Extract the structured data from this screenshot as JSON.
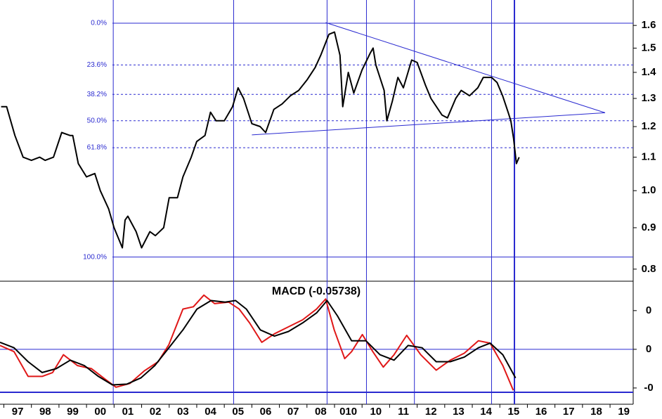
{
  "chart_data": [
    {
      "type": "line",
      "log_scale": true,
      "xlim": [
        1996.36,
        2019.34
      ],
      "ylim": [
        0.773,
        1.72
      ],
      "yticks": [
        0.8,
        0.9,
        {
          "value": 1,
          "label": "1.0"
        },
        1.1,
        1.2,
        1.3,
        1.4,
        1.5,
        1.6
      ],
      "x": [
        1996.4,
        1996.6,
        1996.9,
        1997.2,
        1997.5,
        1997.8,
        1998.0,
        1998.3,
        1998.6,
        1998.9,
        1999.0,
        1999.2,
        1999.5,
        1999.8,
        2000.0,
        2000.3,
        2000.5,
        2000.8,
        2000.9,
        2001.0,
        2001.3,
        2001.5,
        2001.8,
        2002.0,
        2002.3,
        2002.5,
        2002.8,
        2003.0,
        2003.3,
        2003.5,
        2003.8,
        2004.0,
        2004.2,
        2004.5,
        2004.8,
        2005.0,
        2005.2,
        2005.5,
        2005.8,
        2006.0,
        2006.3,
        2006.6,
        2006.9,
        2007.2,
        2007.5,
        2007.8,
        2008.0,
        2008.3,
        2008.5,
        2008.7,
        2008.8,
        2009.0,
        2009.2,
        2009.5,
        2009.8,
        2009.9,
        2010.0,
        2010.3,
        2010.4,
        2010.6,
        2010.8,
        2011.0,
        2011.3,
        2011.5,
        2011.8,
        2012.0,
        2012.4,
        2012.6,
        2012.9,
        2013.1,
        2013.4,
        2013.7,
        2013.9,
        2014.2,
        2014.4,
        2014.6,
        2014.8,
        2014.9,
        2015.0,
        2015.1,
        2015.2
      ],
      "series": [
        {
          "color": "#000000",
          "values": [
            1.27,
            1.27,
            1.17,
            1.1,
            1.09,
            1.1,
            1.09,
            1.1,
            1.18,
            1.17,
            1.17,
            1.08,
            1.04,
            1.05,
            1.0,
            0.95,
            0.9,
            0.85,
            0.92,
            0.93,
            0.89,
            0.85,
            0.89,
            0.88,
            0.9,
            0.98,
            0.98,
            1.04,
            1.1,
            1.15,
            1.17,
            1.25,
            1.22,
            1.22,
            1.27,
            1.34,
            1.3,
            1.21,
            1.2,
            1.18,
            1.26,
            1.28,
            1.31,
            1.33,
            1.37,
            1.42,
            1.47,
            1.56,
            1.57,
            1.47,
            1.27,
            1.4,
            1.32,
            1.41,
            1.48,
            1.5,
            1.43,
            1.33,
            1.22,
            1.29,
            1.38,
            1.34,
            1.45,
            1.44,
            1.35,
            1.3,
            1.24,
            1.23,
            1.3,
            1.33,
            1.31,
            1.34,
            1.38,
            1.38,
            1.36,
            1.31,
            1.25,
            1.22,
            1.16,
            1.08,
            1.1
          ]
        }
      ],
      "levels": [
        {
          "value": 1.61,
          "label": "0.0%",
          "style": "solid"
        },
        {
          "value": 1.43,
          "label": "23.6%",
          "style": "dashed"
        },
        {
          "value": 1.315,
          "label": "38.2%",
          "style": "dashed"
        },
        {
          "value": 1.22,
          "label": "50.0%",
          "style": "dashed"
        },
        {
          "value": 1.13,
          "label": "61.8%",
          "style": "dashed"
        },
        {
          "value": 0.828,
          "label": "100.0%",
          "style": "solid"
        }
      ],
      "trendlines": [
        {
          "x": [
            2008.18,
            2018.32
          ],
          "values": [
            1.613,
            1.248
          ]
        },
        {
          "x": [
            2005.5,
            2018.32
          ],
          "values": [
            1.172,
            1.248
          ]
        }
      ],
      "vlines": [
        2000.47,
        2004.84,
        2008.23,
        2009.66,
        2011.4,
        2014.2,
        2015.03
      ],
      "line_color": "#2a2ad0"
    },
    {
      "type": "line",
      "title": "MACD (-0.05738)",
      "xlim": [
        1996.36,
        2019.34
      ],
      "ylim": [
        -0.071,
        0.088
      ],
      "yticks": [
        {
          "value": 0.05,
          "label": "0"
        },
        {
          "value": 0,
          "label": "0"
        },
        {
          "value": -0.05,
          "label": "-0"
        }
      ],
      "xticks": [
        {
          "value": 1997,
          "label": "97"
        },
        {
          "value": 1998,
          "label": "98"
        },
        {
          "value": 1999,
          "label": "99"
        },
        {
          "value": 2000,
          "label": "00"
        },
        {
          "value": 2001,
          "label": "01"
        },
        {
          "value": 2002,
          "label": "02"
        },
        {
          "value": 2003,
          "label": "03"
        },
        {
          "value": 2004,
          "label": "04"
        },
        {
          "value": 2005,
          "label": "05"
        },
        {
          "value": 2006,
          "label": "06"
        },
        {
          "value": 2007,
          "label": "07"
        },
        {
          "value": 2008,
          "label": "08"
        },
        {
          "value": 2009,
          "label": "010"
        },
        {
          "value": 2010,
          "label": "10"
        },
        {
          "value": 2011,
          "label": "11"
        },
        {
          "value": 2012,
          "label": "12"
        },
        {
          "value": 2013,
          "label": "13"
        },
        {
          "value": 2014,
          "label": "14"
        },
        {
          "value": 2015,
          "label": "15"
        },
        {
          "value": 2016,
          "label": "16"
        },
        {
          "value": 2017,
          "label": "17"
        },
        {
          "value": 2018,
          "label": "18"
        },
        {
          "value": 2019,
          "label": "19"
        }
      ],
      "hlines": [
        0,
        -0.0555
      ],
      "series": [
        {
          "color": "#e01818",
          "x": [
            1996.36,
            1996.87,
            1997.38,
            1997.89,
            1998.27,
            1998.66,
            1999.17,
            1999.68,
            2000.19,
            2000.57,
            2001.08,
            2001.59,
            2002.1,
            2002.49,
            2003.0,
            2003.38,
            2003.76,
            2004.15,
            2004.66,
            2005.04,
            2005.42,
            2005.86,
            2006.32,
            2006.83,
            2007.34,
            2007.85,
            2008.18,
            2008.49,
            2008.87,
            2009.12,
            2009.51,
            2009.89,
            2010.27,
            2010.66,
            2011.12,
            2011.63,
            2012.19,
            2012.7,
            2013.21,
            2013.72,
            2014.15,
            2014.61,
            2014.99
          ],
          "values": [
            0.005,
            -0.003,
            -0.035,
            -0.035,
            -0.03,
            -0.007,
            -0.021,
            -0.025,
            -0.039,
            -0.049,
            -0.044,
            -0.028,
            -0.016,
            0.006,
            0.052,
            0.055,
            0.07,
            0.059,
            0.061,
            0.052,
            0.034,
            0.009,
            0.02,
            0.029,
            0.038,
            0.052,
            0.065,
            0.025,
            -0.012,
            -0.003,
            0.019,
            -0.003,
            -0.023,
            -0.007,
            0.018,
            -0.007,
            -0.027,
            -0.014,
            -0.005,
            0.011,
            0.008,
            -0.021,
            -0.053
          ]
        },
        {
          "color": "#000000",
          "x": [
            1996.36,
            1996.87,
            1997.38,
            1997.89,
            1998.4,
            1998.91,
            1999.42,
            1999.93,
            2000.44,
            2000.96,
            2001.47,
            2001.98,
            2002.49,
            2003.0,
            2003.51,
            2004.02,
            2004.53,
            2004.91,
            2005.3,
            2005.81,
            2006.32,
            2006.83,
            2007.34,
            2007.85,
            2008.23,
            2008.61,
            2009.12,
            2009.64,
            2010.15,
            2010.66,
            2011.17,
            2011.68,
            2012.19,
            2012.7,
            2013.21,
            2013.72,
            2014.15,
            2014.61,
            2015.07
          ],
          "values": [
            0.009,
            0.002,
            -0.016,
            -0.03,
            -0.025,
            -0.014,
            -0.021,
            -0.035,
            -0.046,
            -0.045,
            -0.037,
            -0.021,
            0.002,
            0.025,
            0.052,
            0.063,
            0.061,
            0.063,
            0.052,
            0.025,
            0.017,
            0.023,
            0.034,
            0.047,
            0.063,
            0.043,
            0.011,
            0.011,
            -0.007,
            -0.014,
            0.005,
            0.002,
            -0.016,
            -0.016,
            -0.01,
            0.002,
            0.008,
            -0.007,
            -0.037
          ]
        }
      ]
    }
  ]
}
